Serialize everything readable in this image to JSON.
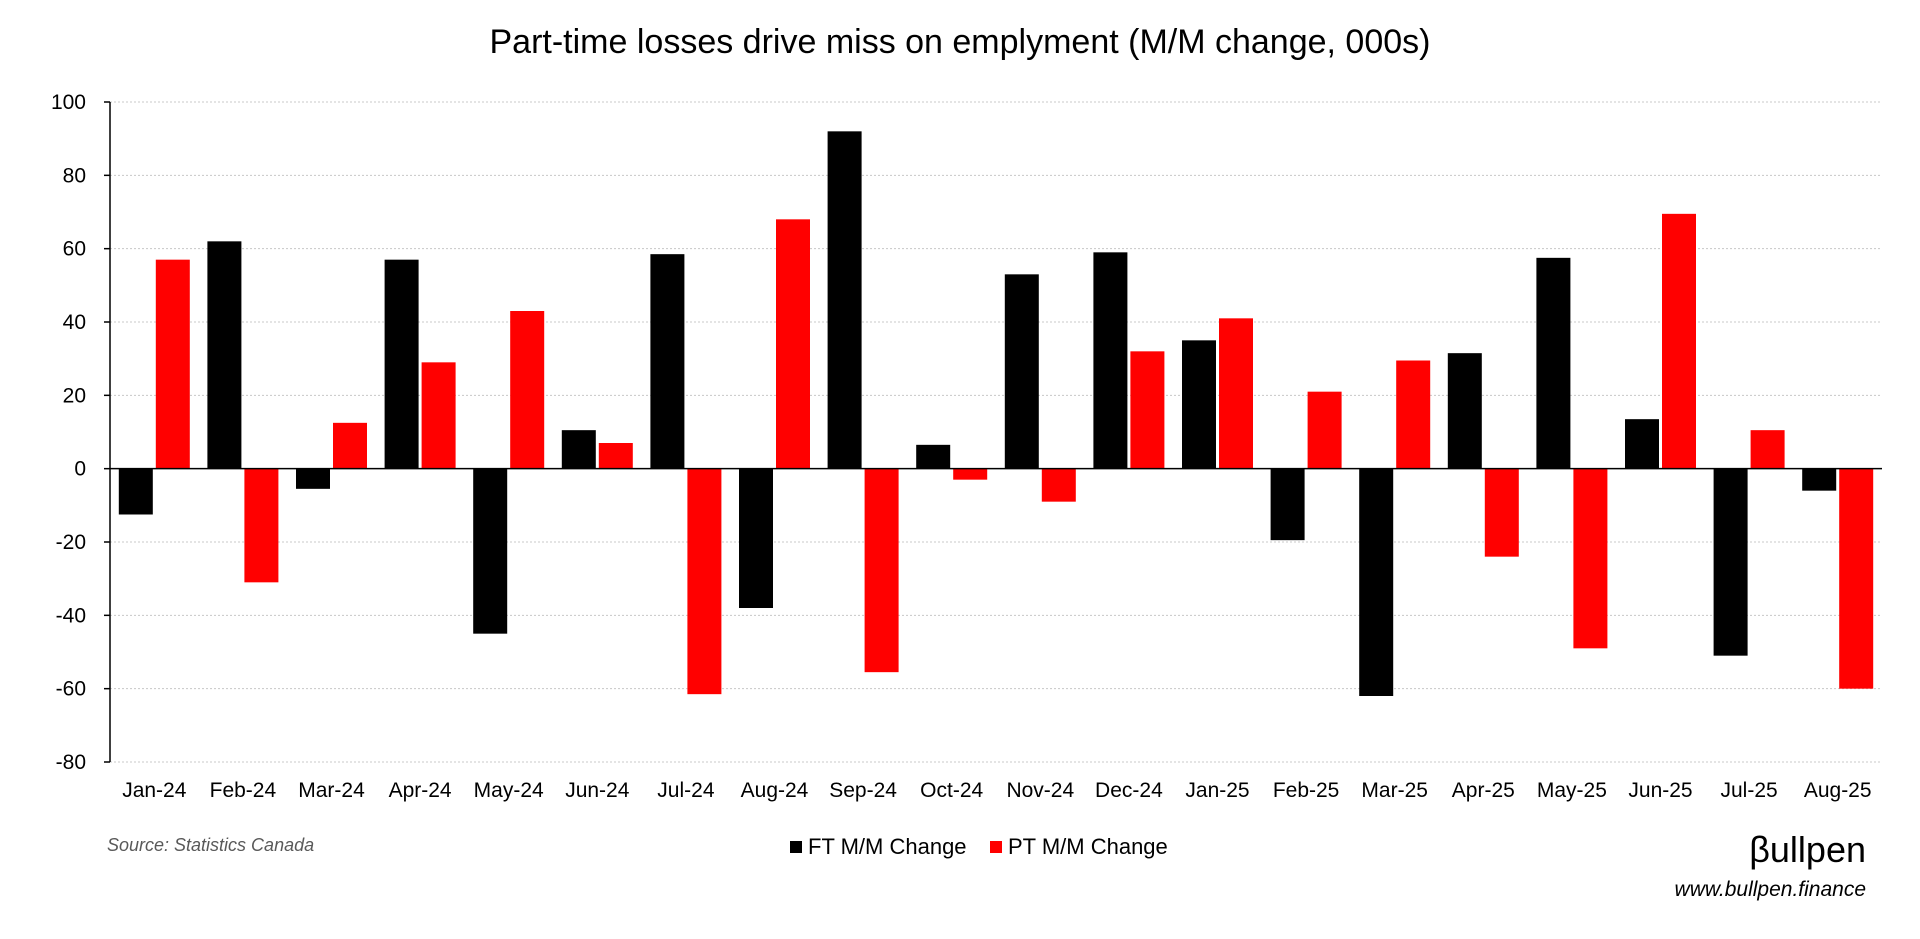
{
  "chart_data": {
    "type": "bar",
    "title": "Part-time losses drive miss on emplyment (M/M change, 000s)",
    "categories": [
      "Jan-24",
      "Feb-24",
      "Mar-24",
      "Apr-24",
      "May-24",
      "Jun-24",
      "Jul-24",
      "Aug-24",
      "Sep-24",
      "Oct-24",
      "Nov-24",
      "Dec-24",
      "Jan-25",
      "Feb-25",
      "Mar-25",
      "Apr-25",
      "May-25",
      "Jun-25",
      "Jul-25",
      "Aug-25"
    ],
    "series": [
      {
        "name": "FT M/M Change",
        "color": "#000000",
        "values": [
          -12.5,
          62,
          -5.5,
          57,
          -45,
          10.5,
          58.5,
          -38,
          92,
          6.5,
          53,
          59,
          35,
          -19.5,
          -62,
          31.5,
          57.5,
          13.5,
          -51,
          -6
        ]
      },
      {
        "name": "PT M/M Change",
        "color": "#ff0000",
        "values": [
          57,
          -31,
          12.5,
          29,
          43,
          7,
          -61.5,
          68,
          -55.5,
          -3,
          -9,
          32,
          41,
          21,
          29.5,
          -24,
          -49,
          69.5,
          10.5,
          -60
        ]
      }
    ],
    "ylim": [
      -80,
      100
    ],
    "yticks": [
      100,
      80,
      60,
      40,
      20,
      0,
      -20,
      -40,
      -60,
      -80
    ],
    "grid": true,
    "legend_position": "bottom-center",
    "xlabel": "",
    "ylabel": ""
  },
  "source": "Source: Statistics Canada",
  "brand": {
    "logo_text": "βullpen",
    "url": "www.bullpen.finance"
  }
}
